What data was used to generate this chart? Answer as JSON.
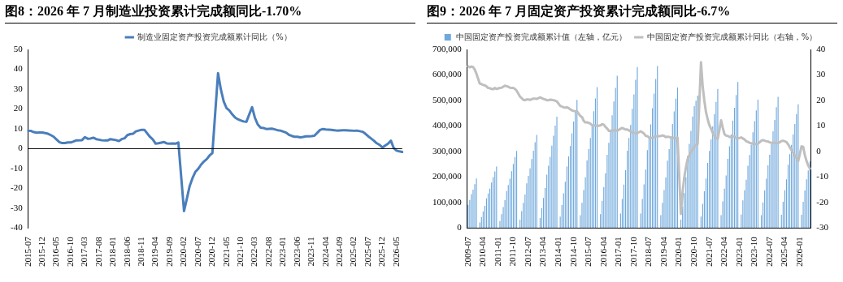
{
  "chart_data": [
    {
      "type": "line",
      "title": "图8：2026 年 7 月制造业投资累计完成额同比-1.70%",
      "legend": "top",
      "grid": false,
      "marker": "none",
      "categories": [
        "2015-07",
        null,
        null,
        null,
        null,
        "2015-12",
        null,
        null,
        null,
        null,
        "2016-05",
        null,
        null,
        null,
        null,
        "2016-10",
        null,
        null,
        null,
        null,
        "2017-03",
        null,
        null,
        null,
        null,
        "2017-08",
        null,
        null,
        null,
        null,
        "2018-01",
        null,
        null,
        null,
        null,
        "2018-06",
        null,
        null,
        null,
        null,
        "2018-11",
        null,
        null,
        null,
        null,
        "2019-04",
        null,
        null,
        null,
        null,
        "2019-09",
        null,
        null,
        null,
        null,
        "2020-02",
        null,
        null,
        null,
        null,
        "2020-07",
        null,
        null,
        null,
        null,
        "2020-12",
        null,
        null,
        null,
        null,
        "2021-05",
        null,
        null,
        null,
        null,
        "2021-10",
        null,
        null,
        null,
        null,
        "2022-03",
        null,
        null,
        null,
        null,
        "2022-08",
        null,
        null,
        null,
        null,
        "2023-01",
        null,
        null,
        null,
        null,
        "2023-06",
        null,
        null,
        null,
        null,
        "2023-11",
        null,
        null,
        null,
        null,
        "2024-04",
        null,
        null,
        null,
        null,
        "2024-09",
        null,
        null,
        null,
        null,
        "2025-02",
        null,
        null,
        null,
        null,
        "2025-07",
        null,
        null,
        null,
        null,
        "2025-12",
        null,
        null,
        null,
        null,
        "2026-05",
        null,
        null
      ],
      "series": [
        {
          "name": "制造业固定资产投资完成额累计同比（%）",
          "color": "#4a7ebb",
          "values": [
            9.0,
            8.9,
            8.3,
            8.0,
            8.1,
            8.1,
            null,
            7.5,
            6.8,
            6.0,
            4.6,
            3.3,
            2.8,
            2.8,
            3.1,
            3.1,
            3.6,
            4.2,
            null,
            4.3,
            5.8,
            5.0,
            5.1,
            5.5,
            4.8,
            4.5,
            4.2,
            4.1,
            4.1,
            4.8,
            null,
            4.3,
            3.8,
            4.8,
            5.2,
            6.8,
            7.3,
            7.5,
            8.7,
            9.1,
            9.5,
            9.5,
            null,
            5.9,
            4.6,
            2.5,
            2.7,
            3.0,
            3.3,
            2.6,
            2.5,
            2.6,
            2.5,
            3.1,
            null,
            -31.5,
            -25.2,
            -18.8,
            -14.8,
            -11.7,
            -10.2,
            -8.1,
            -6.5,
            -5.3,
            -3.5,
            -2.2,
            null,
            38.0,
            29.8,
            23.8,
            20.4,
            19.2,
            17.3,
            15.7,
            14.8,
            14.2,
            13.7,
            13.5,
            null,
            20.9,
            15.6,
            12.2,
            10.6,
            10.4,
            9.9,
            10.0,
            10.1,
            9.7,
            9.3,
            9.1,
            null,
            8.1,
            7.0,
            6.4,
            6.0,
            6.0,
            5.7,
            5.9,
            6.2,
            6.2,
            6.3,
            6.5,
            null,
            9.4,
            9.9,
            9.7,
            9.6,
            9.5,
            9.3,
            9.1,
            9.2,
            9.3,
            9.3,
            9.2,
            null,
            9.0,
            9.1,
            8.8,
            8.5,
            7.5,
            6.2,
            5.1,
            4.0,
            2.7,
            1.9,
            0.6,
            null,
            2.5,
            4.0,
            0.3,
            -1.0,
            -1.4,
            -1.7
          ]
        }
      ],
      "ref_lines": [
        {
          "axis": "y",
          "value": 0,
          "color": "#000000"
        }
      ],
      "ylim": [
        -40,
        50
      ],
      "yticks": [
        -40,
        -30,
        -20,
        -10,
        0,
        10,
        20,
        30,
        40,
        50
      ]
    },
    {
      "type": "bar",
      "title": "图9：2026 年 7 月固定资产投资累计完成额同比-6.7%",
      "legend": "top",
      "grid": false,
      "marker": "none",
      "categories": [
        "2009-07",
        null,
        null,
        null,
        null,
        null,
        null,
        null,
        null,
        "2010-04",
        null,
        null,
        null,
        null,
        null,
        null,
        null,
        null,
        "2011-01",
        null,
        null,
        null,
        null,
        null,
        null,
        null,
        null,
        "2011-10",
        null,
        null,
        null,
        null,
        null,
        null,
        null,
        null,
        "2012-07",
        null,
        null,
        null,
        null,
        null,
        null,
        null,
        null,
        "2013-04",
        null,
        null,
        null,
        null,
        null,
        null,
        null,
        null,
        "2014-01",
        null,
        null,
        null,
        null,
        null,
        null,
        null,
        null,
        "2014-10",
        null,
        null,
        null,
        null,
        null,
        null,
        null,
        null,
        "2015-07",
        null,
        null,
        null,
        null,
        null,
        null,
        null,
        null,
        "2016-04",
        null,
        null,
        null,
        null,
        null,
        null,
        null,
        null,
        "2017-01",
        null,
        null,
        null,
        null,
        null,
        null,
        null,
        null,
        "2017-10",
        null,
        null,
        null,
        null,
        null,
        null,
        null,
        null,
        "2018-07",
        null,
        null,
        null,
        null,
        null,
        null,
        null,
        null,
        "2019-04",
        null,
        null,
        null,
        null,
        null,
        null,
        null,
        null,
        "2020-01",
        null,
        null,
        null,
        null,
        null,
        null,
        null,
        null,
        "2020-10",
        null,
        null,
        null,
        null,
        null,
        null,
        null,
        null,
        "2021-07",
        null,
        null,
        null,
        null,
        null,
        null,
        null,
        null,
        "2022-04",
        null,
        null,
        null,
        null,
        null,
        null,
        null,
        null,
        "2023-01",
        null,
        null,
        null,
        null,
        null,
        null,
        null,
        null,
        "2023-10",
        null,
        null,
        null,
        null,
        null,
        null,
        null,
        null,
        "2024-07",
        null,
        null,
        null,
        null,
        null,
        null,
        null,
        null,
        "2025-04",
        null,
        null,
        null,
        null,
        null,
        null,
        null,
        null,
        "2026-01",
        null,
        null,
        null,
        null,
        null,
        null
      ],
      "series": [
        {
          "name": "中国固定资产投资完成额累计值（左轴，亿元）",
          "type": "bar",
          "color": "#6fa8dc",
          "values": [
            91000,
            110000,
            133000,
            150000,
            172000,
            194000,
            null,
            22000,
            43000,
            65000,
            87000,
            116000,
            135000,
            154000,
            178000,
            200000,
            222000,
            241000,
            null,
            27000,
            54000,
            82000,
            109000,
            145000,
            169000,
            193000,
            223000,
            251000,
            278000,
            302000,
            null,
            33000,
            66000,
            99000,
            131000,
            175000,
            204000,
            234000,
            270000,
            303000,
            336000,
            365000,
            null,
            39000,
            78000,
            118000,
            157000,
            209000,
            244000,
            279000,
            323000,
            362000,
            401000,
            436000,
            null,
            45000,
            90000,
            136000,
            181000,
            241000,
            281000,
            321000,
            371000,
            417000,
            462000,
            502000,
            null,
            50000,
            99000,
            149000,
            199000,
            265000,
            309000,
            353000,
            408000,
            458000,
            508000,
            552000,
            null,
            54000,
            107000,
            161000,
            215000,
            287000,
            334000,
            382000,
            442000,
            496000,
            549000,
            597000,
            null,
            57000,
            114000,
            170000,
            227000,
            303000,
            353000,
            404000,
            467000,
            524000,
            581000,
            631000,
            null,
            57000,
            114000,
            171000,
            229000,
            305000,
            356000,
            406000,
            470000,
            527000,
            584000,
            635000,
            null,
            50000,
            99000,
            149000,
            198000,
            264000,
            309000,
            353000,
            408000,
            457000,
            507000,
            551000,
            null,
            33000,
            84000,
            137000,
            200000,
            282000,
            330000,
            381000,
            437000,
            478000,
            499000,
            519000,
            null,
            45000,
            95000,
            144000,
            194000,
            255000,
            302000,
            347000,
            398000,
            446000,
            494000,
            545000,
            null,
            50000,
            104000,
            154000,
            206000,
            271000,
            320000,
            367000,
            421000,
            471000,
            521000,
            572000,
            null,
            53000,
            108000,
            148000,
            189000,
            244000,
            286000,
            327000,
            375000,
            419000,
            461000,
            503000,
            null,
            50000,
            100000,
            147000,
            193000,
            246000,
            287000,
            329000,
            379000,
            424000,
            474000,
            514000,
            null,
            52000,
            103000,
            148000,
            191000,
            248000,
            289000,
            326000,
            367000,
            408000,
            447000,
            485000,
            null,
            52000,
            103000,
            147000,
            191000,
            226000,
            261000
          ]
        },
        {
          "name": "中国固定资产投资完成额累计同比（右轴，%）",
          "type": "line",
          "axis": "y2",
          "color": "#bfbfbf",
          "values": [
            33.4,
            33.0,
            33.3,
            33.1,
            32.1,
            30.5,
            null,
            26.6,
            26.4,
            26.1,
            25.9,
            25.5,
            24.9,
            24.8,
            24.5,
            24.4,
            24.9,
            24.5,
            null,
            24.9,
            25.0,
            25.4,
            25.8,
            25.6,
            25.4,
            25.0,
            24.9,
            24.9,
            24.5,
            23.8,
            null,
            21.5,
            20.9,
            20.2,
            20.1,
            20.4,
            20.4,
            20.2,
            20.5,
            20.7,
            20.7,
            20.6,
            null,
            21.2,
            20.9,
            20.6,
            20.4,
            20.1,
            20.1,
            20.3,
            20.2,
            20.1,
            19.9,
            19.6,
            null,
            17.9,
            17.6,
            17.3,
            17.2,
            17.3,
            17.0,
            16.5,
            16.1,
            15.9,
            15.8,
            15.7,
            null,
            13.9,
            13.5,
            12.0,
            11.4,
            11.4,
            11.2,
            10.9,
            10.3,
            10.2,
            10.2,
            10.0,
            null,
            10.2,
            10.7,
            10.5,
            9.6,
            9.0,
            8.1,
            8.1,
            8.2,
            8.3,
            8.3,
            8.1,
            null,
            8.9,
            9.2,
            8.9,
            8.6,
            8.6,
            8.3,
            7.8,
            7.5,
            7.3,
            7.2,
            7.2,
            null,
            7.9,
            7.5,
            7.0,
            6.1,
            6.0,
            5.5,
            5.3,
            5.4,
            5.7,
            5.9,
            5.9,
            null,
            6.1,
            6.3,
            6.1,
            5.6,
            5.8,
            5.7,
            5.5,
            5.4,
            5.2,
            5.2,
            5.4,
            null,
            -24.5,
            -16.1,
            -10.3,
            -6.3,
            -3.1,
            -1.6,
            -0.3,
            0.8,
            1.8,
            2.6,
            2.9,
            null,
            35.0,
            25.6,
            19.9,
            15.4,
            12.6,
            10.3,
            8.9,
            7.3,
            6.1,
            5.2,
            4.9,
            null,
            12.2,
            9.3,
            6.8,
            6.2,
            6.1,
            5.7,
            5.8,
            5.9,
            5.8,
            5.3,
            5.1,
            null,
            5.5,
            5.1,
            4.7,
            4.0,
            3.8,
            3.4,
            3.2,
            3.1,
            2.9,
            2.9,
            3.0,
            null,
            4.2,
            4.5,
            4.2,
            4.0,
            3.9,
            3.6,
            3.4,
            3.4,
            3.4,
            3.3,
            3.2,
            null,
            4.1,
            4.2,
            4.0,
            3.7,
            2.8,
            1.6,
            0.5,
            -0.5,
            -1.7,
            -2.6,
            -3.8,
            null,
            2.0,
            1.8,
            -1.5,
            -3.8,
            -5.5,
            -6.7
          ]
        }
      ],
      "ylim": [
        0,
        700000
      ],
      "yticks": [
        0,
        {
          "value": 100000,
          "label": "100,000"
        },
        {
          "value": 200000,
          "label": "200,000"
        },
        {
          "value": 300000,
          "label": "300,000"
        },
        {
          "value": 400000,
          "label": "400,000"
        },
        {
          "value": 500000,
          "label": "500,000"
        },
        {
          "value": 600000,
          "label": "600,000"
        },
        {
          "value": 700000,
          "label": "700,000"
        }
      ],
      "y2lim": [
        -30,
        40
      ],
      "y2ticks": [
        -30,
        -20,
        -10,
        0,
        10,
        20,
        30,
        40
      ]
    }
  ]
}
